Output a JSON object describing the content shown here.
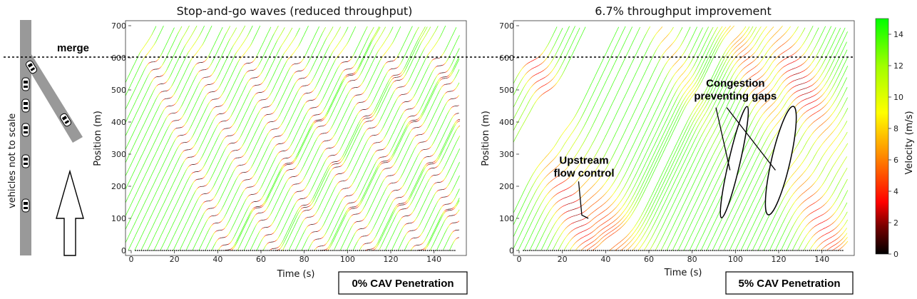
{
  "diagram": {
    "merge_label": "merge",
    "scale_note": "vehicles not to scale"
  },
  "chart_data": [
    {
      "type": "line",
      "title": "Stop-and-go waves (reduced throughput)",
      "xlabel": "Time (s)",
      "ylabel": "Position (m)",
      "xlim": [
        0,
        150
      ],
      "ylim": [
        0,
        700
      ],
      "xticks": [
        0,
        20,
        40,
        60,
        80,
        100,
        120,
        140
      ],
      "yticks": [
        0,
        100,
        200,
        300,
        400,
        500,
        600,
        700
      ],
      "merge_position": 600,
      "wave_starts": [
        8,
        30,
        52,
        74,
        97,
        118,
        140
      ],
      "wave_slope_m_per_s": -17,
      "free_speed": 14,
      "vehicle_spacing_s": 1.35,
      "grid": false,
      "footer_label": "0% CAV Penetration"
    },
    {
      "type": "line",
      "title": "6.7% throughput improvement",
      "xlabel": "Time (s)",
      "ylabel": "Position (m)",
      "xlim": [
        0,
        150
      ],
      "ylim": [
        0,
        700
      ],
      "xticks": [
        0,
        20,
        40,
        60,
        80,
        100,
        120,
        140
      ],
      "yticks": [
        0,
        100,
        200,
        300,
        400,
        500,
        600,
        700
      ],
      "merge_position": 600,
      "free_speed": 14,
      "vehicle_spacing_s": 1.2,
      "grid": false,
      "footer_label": "5% CAV Penetration",
      "annotations": [
        {
          "text_lines": [
            "Upstream",
            "flow control"
          ],
          "x": 30,
          "y": 230
        },
        {
          "text_lines": [
            "Congestion",
            "preventing gaps"
          ],
          "x": 100,
          "y": 470
        }
      ],
      "gap_ellipses": [
        {
          "x": 99.5,
          "y": 275
        },
        {
          "x": 121,
          "y": 280
        }
      ]
    }
  ],
  "colorbar": {
    "label": "Velocity (m/s)",
    "min": 0,
    "max": 15,
    "ticks": [
      0,
      2,
      4,
      6,
      8,
      10,
      12,
      14
    ],
    "colors": [
      "#000000",
      "#ff0000",
      "#ffff00",
      "#00ff00"
    ]
  }
}
